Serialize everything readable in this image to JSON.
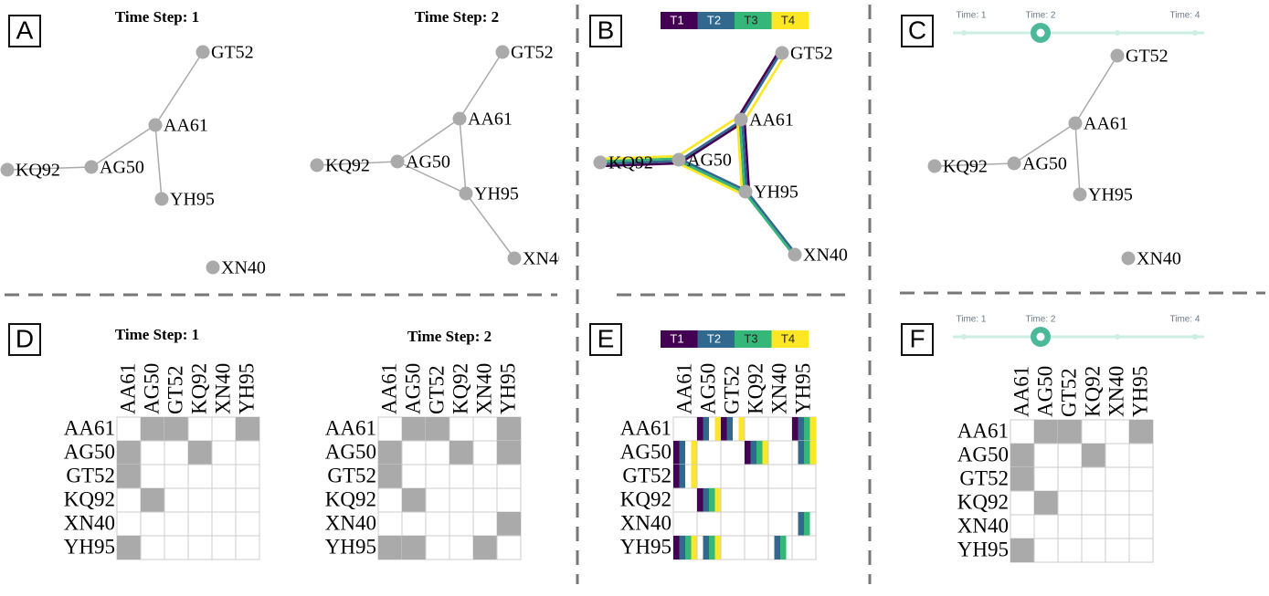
{
  "panel_labels": [
    "A",
    "B",
    "C",
    "D",
    "E",
    "F"
  ],
  "time_step_titles": [
    "Time Step: 1",
    "Time Step: 2"
  ],
  "nodes": [
    "AA61",
    "AG50",
    "GT52",
    "KQ92",
    "XN40",
    "YH95"
  ],
  "timesteps": [
    "T1",
    "T2",
    "T3",
    "T4"
  ],
  "timestep_colors": [
    "#440154",
    "#31688e",
    "#35b779",
    "#fde725"
  ],
  "slider_labels": [
    "Time: 1",
    "Time: 2",
    "Time: 4"
  ],
  "step_edges": [
    [
      [
        "AA61",
        "GT52"
      ],
      [
        "AA61",
        "AG50"
      ],
      [
        "AA61",
        "YH95"
      ],
      [
        "AG50",
        "KQ92"
      ]
    ],
    [
      [
        "AA61",
        "GT52"
      ],
      [
        "AA61",
        "AG50"
      ],
      [
        "AA61",
        "YH95"
      ],
      [
        "AG50",
        "KQ92"
      ],
      [
        "AG50",
        "YH95"
      ],
      [
        "YH95",
        "XN40"
      ]
    ],
    [
      [
        "AA61",
        "YH95"
      ],
      [
        "AG50",
        "KQ92"
      ],
      [
        "AG50",
        "YH95"
      ],
      [
        "YH95",
        "XN40"
      ]
    ],
    [
      [
        "AA61",
        "GT52"
      ],
      [
        "AA61",
        "AG50"
      ],
      [
        "AA61",
        "YH95"
      ],
      [
        "AG50",
        "KQ92"
      ],
      [
        "AG50",
        "YH95"
      ]
    ]
  ]
}
